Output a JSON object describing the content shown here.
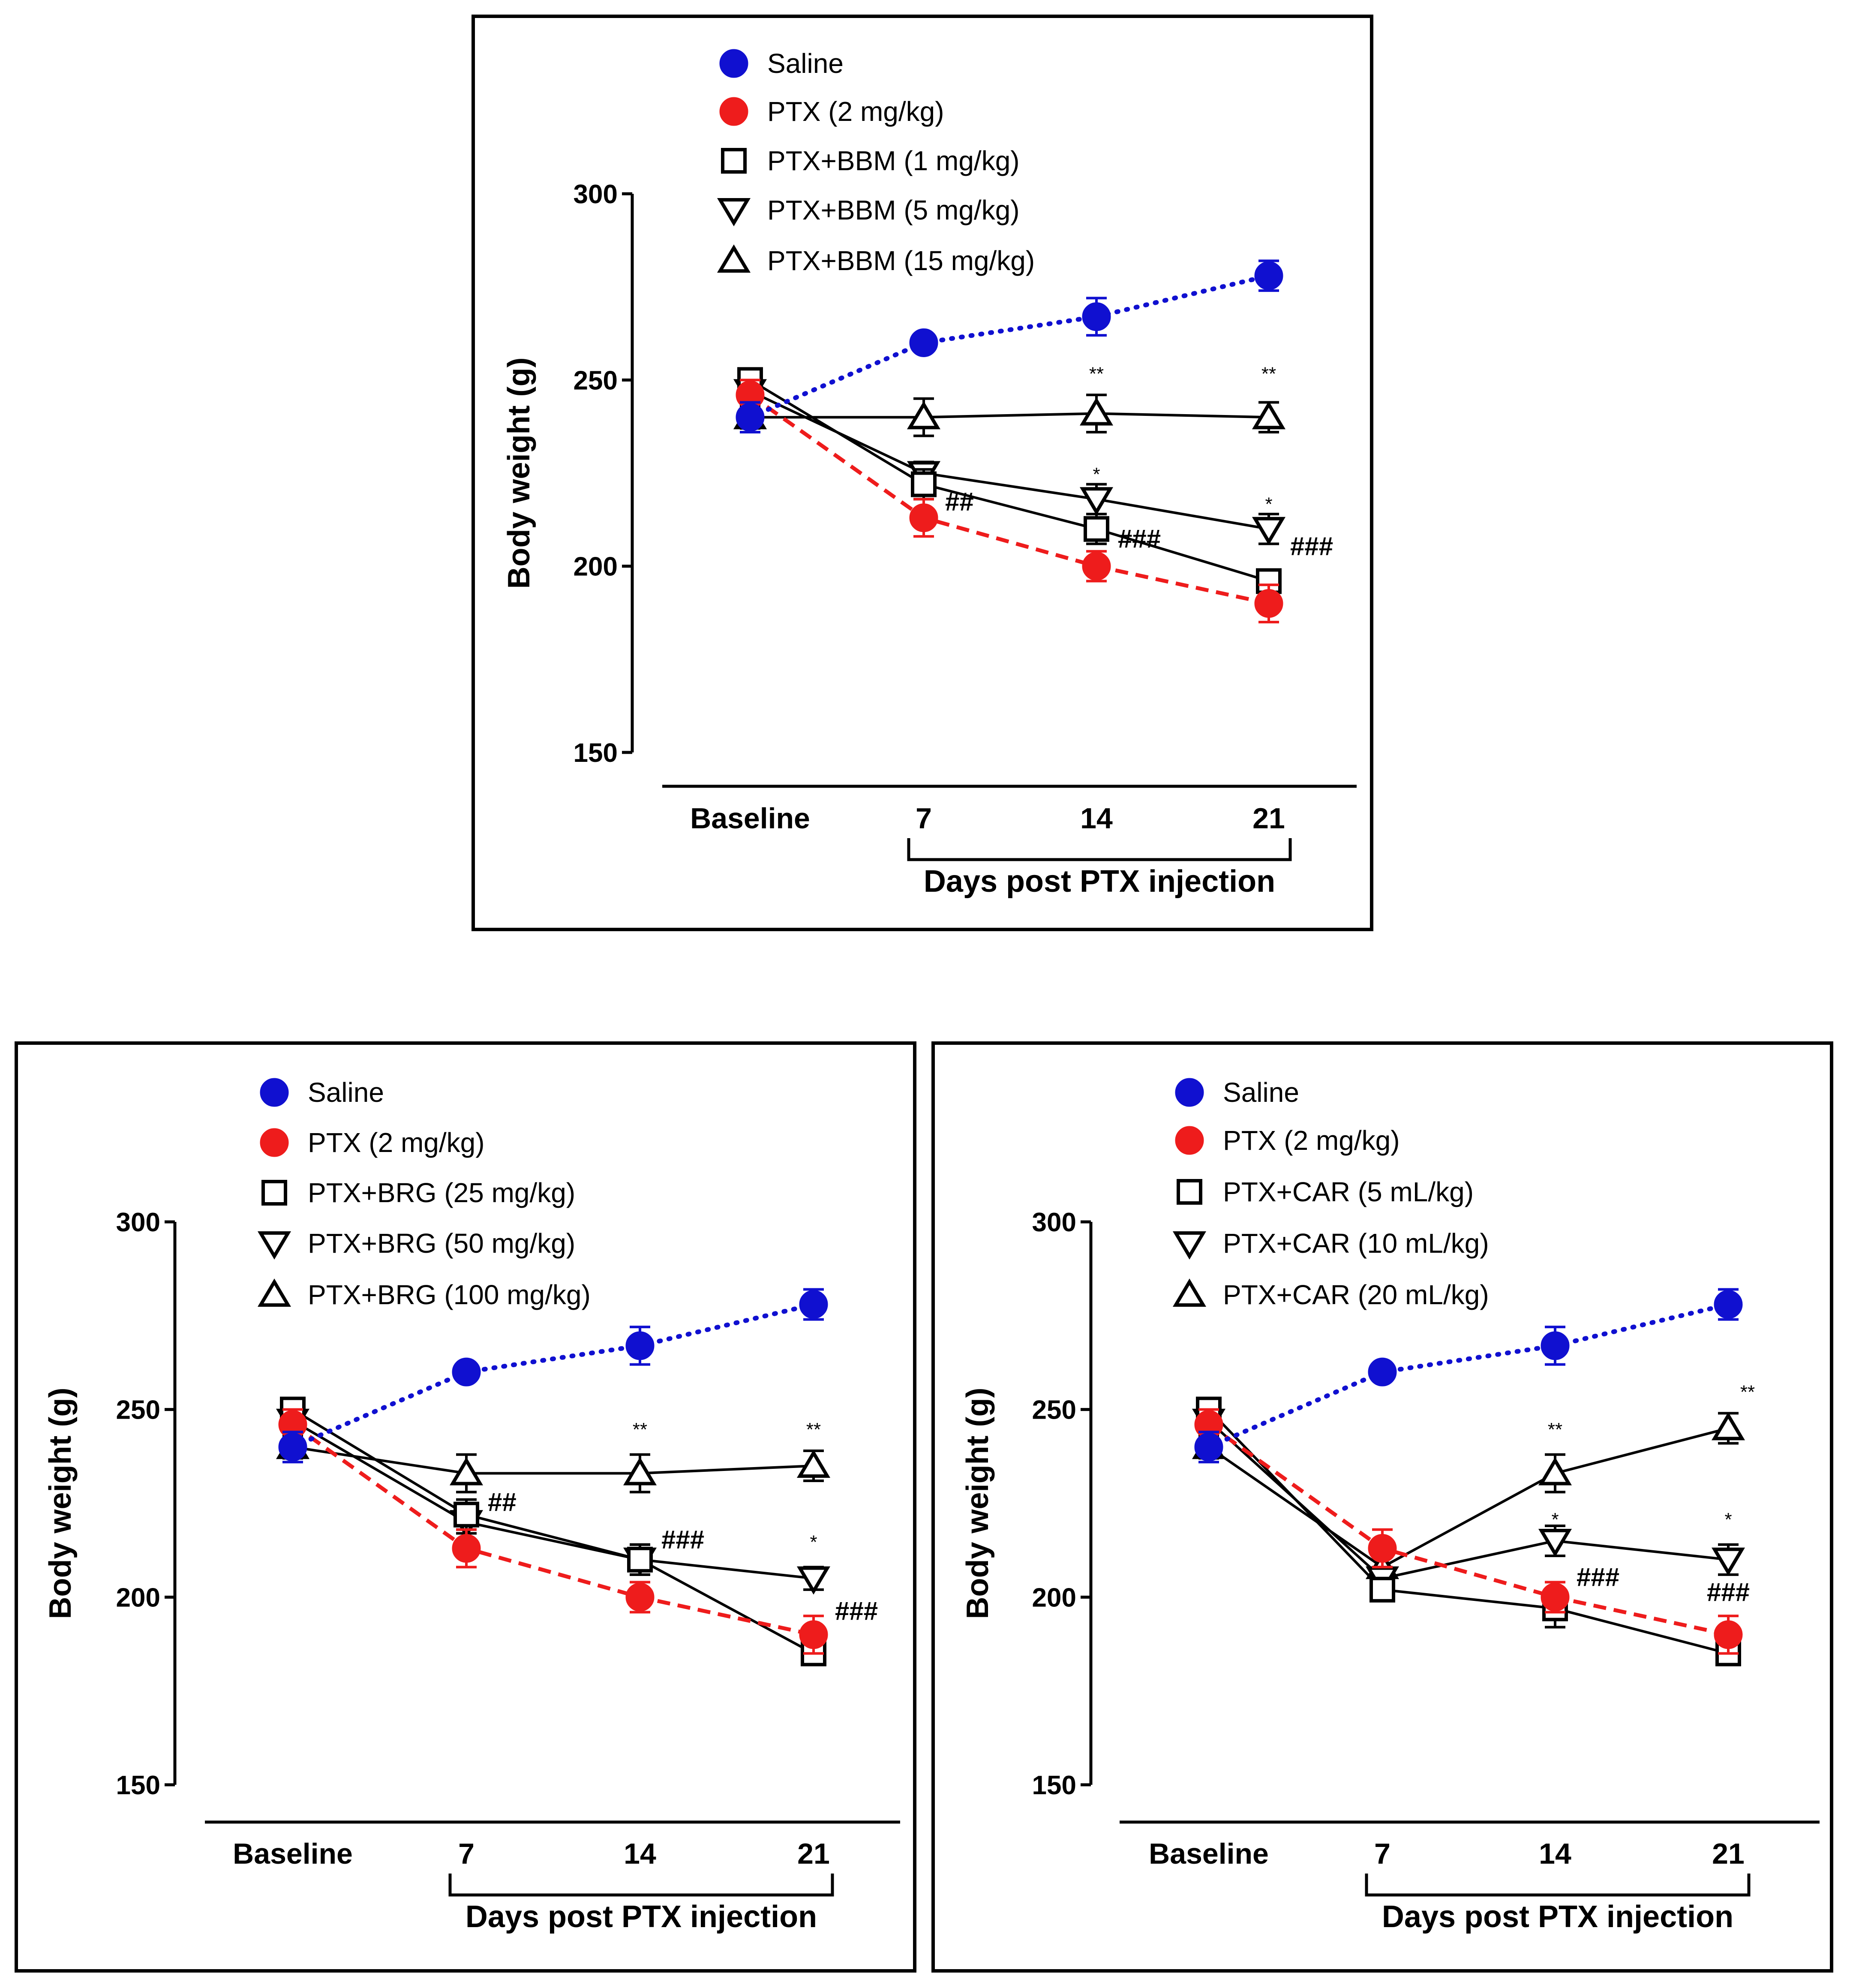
{
  "chart_data": [
    {
      "type": "line",
      "panel": "BBM",
      "ylabel": "Body weight (g)",
      "xlabel": "Days post PTX injection",
      "categories": [
        "Baseline",
        "7",
        "14",
        "21"
      ],
      "yticks": [
        "150",
        "200",
        "250",
        "300"
      ],
      "ylim": [
        150,
        300
      ],
      "series": [
        {
          "name": "Saline",
          "marker": "circle",
          "color": "#1010d0",
          "line": "dotted",
          "values": [
            240,
            260,
            267,
            278
          ],
          "errors": [
            4,
            2,
            5,
            4
          ]
        },
        {
          "name": "PTX (2 mg/kg)",
          "marker": "circle",
          "color": "#ee1c1c",
          "line": "dashed",
          "values": [
            246,
            213,
            200,
            190
          ],
          "errors": [
            4,
            5,
            4,
            5
          ]
        },
        {
          "name": "PTX+BBM (1 mg/kg)",
          "marker": "square",
          "color": "#000000",
          "line": "solid",
          "values": [
            250,
            222,
            210,
            196
          ],
          "errors": [
            3,
            4,
            4,
            3
          ]
        },
        {
          "name": "PTX+BBM (5 mg/kg)",
          "marker": "triangle-down",
          "color": "#000000",
          "line": "solid",
          "values": [
            247,
            225,
            218,
            210
          ],
          "errors": [
            3,
            3,
            4,
            4
          ]
        },
        {
          "name": "PTX+BBM (15 mg/kg)",
          "marker": "triangle-up",
          "color": "#000000",
          "line": "solid",
          "values": [
            240,
            240,
            241,
            240
          ],
          "errors": [
            3,
            5,
            5,
            4
          ]
        }
      ],
      "annotations": [
        {
          "text": "**",
          "category": "14",
          "value": 250,
          "kind": "star"
        },
        {
          "text": "**",
          "category": "21",
          "value": 250,
          "kind": "star"
        },
        {
          "text": "*",
          "category": "14",
          "value": 223,
          "kind": "star"
        },
        {
          "text": "*",
          "category": "21",
          "value": 215,
          "kind": "star"
        },
        {
          "text": "##",
          "category": "7",
          "value": 215,
          "kind": "hash"
        },
        {
          "text": "###",
          "category": "14",
          "value": 205,
          "kind": "hash"
        },
        {
          "text": "###",
          "category": "21",
          "value": 203,
          "kind": "hash"
        }
      ]
    },
    {
      "type": "line",
      "panel": "BRG",
      "ylabel": "Body weight (g)",
      "xlabel": "Days post PTX injection",
      "categories": [
        "Baseline",
        "7",
        "14",
        "21"
      ],
      "yticks": [
        "150",
        "200",
        "250",
        "300"
      ],
      "ylim": [
        150,
        300
      ],
      "series": [
        {
          "name": "Saline",
          "marker": "circle",
          "color": "#1010d0",
          "line": "dotted",
          "values": [
            240,
            260,
            267,
            278
          ],
          "errors": [
            4,
            2,
            5,
            4
          ]
        },
        {
          "name": "PTX (2 mg/kg)",
          "marker": "circle",
          "color": "#ee1c1c",
          "line": "dashed",
          "values": [
            246,
            213,
            200,
            190
          ],
          "errors": [
            4,
            5,
            4,
            5
          ]
        },
        {
          "name": "PTX+BRG (25 mg/kg)",
          "marker": "square",
          "color": "#000000",
          "line": "solid",
          "values": [
            250,
            222,
            210,
            185
          ],
          "errors": [
            3,
            4,
            4,
            3
          ]
        },
        {
          "name": "PTX+BRG (50 mg/kg)",
          "marker": "triangle-down",
          "color": "#000000",
          "line": "solid",
          "values": [
            247,
            220,
            210,
            205
          ],
          "errors": [
            3,
            3,
            4,
            3
          ]
        },
        {
          "name": "PTX+BRG (100 mg/kg)",
          "marker": "triangle-up",
          "color": "#000000",
          "line": "solid",
          "values": [
            240,
            233,
            233,
            235
          ],
          "errors": [
            3,
            5,
            5,
            4
          ]
        }
      ],
      "annotations": [
        {
          "text": "**",
          "category": "14",
          "value": 243,
          "kind": "star"
        },
        {
          "text": "**",
          "category": "21",
          "value": 243,
          "kind": "star"
        },
        {
          "text": "*",
          "category": "21",
          "value": 213,
          "kind": "star"
        },
        {
          "text": "##",
          "category": "7",
          "value": 223,
          "kind": "hash"
        },
        {
          "text": "###",
          "category": "14",
          "value": 213,
          "kind": "hash"
        },
        {
          "text": "###",
          "category": "21",
          "value": 194,
          "kind": "hash"
        }
      ]
    },
    {
      "type": "line",
      "panel": "CAR",
      "ylabel": "Body weight (g)",
      "xlabel": "Days post PTX injection",
      "categories": [
        "Baseline",
        "7",
        "14",
        "21"
      ],
      "yticks": [
        "150",
        "200",
        "250",
        "300"
      ],
      "ylim": [
        150,
        300
      ],
      "series": [
        {
          "name": "Saline",
          "marker": "circle",
          "color": "#1010d0",
          "line": "dotted",
          "values": [
            240,
            260,
            267,
            278
          ],
          "errors": [
            4,
            2,
            5,
            4
          ]
        },
        {
          "name": "PTX (2 mg/kg)",
          "marker": "circle",
          "color": "#ee1c1c",
          "line": "dashed",
          "values": [
            246,
            213,
            200,
            190
          ],
          "errors": [
            4,
            5,
            4,
            5
          ]
        },
        {
          "name": "PTX+CAR (5 mL/kg)",
          "marker": "square",
          "color": "#000000",
          "line": "solid",
          "values": [
            250,
            202,
            197,
            185
          ],
          "errors": [
            3,
            3,
            5,
            3
          ]
        },
        {
          "name": "PTX+CAR (10 mL/kg)",
          "marker": "triangle-down",
          "color": "#000000",
          "line": "solid",
          "values": [
            247,
            205,
            215,
            210
          ],
          "errors": [
            3,
            3,
            4,
            4
          ]
        },
        {
          "name": "PTX+CAR (20 mL/kg)",
          "marker": "triangle-up",
          "color": "#000000",
          "line": "solid",
          "values": [
            240,
            208,
            233,
            245
          ],
          "errors": [
            3,
            4,
            5,
            4
          ]
        }
      ],
      "annotations": [
        {
          "text": "**",
          "category": "14",
          "value": 243,
          "kind": "star"
        },
        {
          "text": "**",
          "category": "21",
          "value": 253,
          "kind": "star",
          "dx": 1
        },
        {
          "text": "*",
          "category": "14",
          "value": 219,
          "kind": "star"
        },
        {
          "text": "*",
          "category": "21",
          "value": 219,
          "kind": "star"
        },
        {
          "text": "###",
          "category": "14",
          "value": 203,
          "kind": "hash"
        },
        {
          "text": "###",
          "category": "21",
          "value": 199,
          "kind": "hash",
          "center": true
        }
      ]
    }
  ]
}
